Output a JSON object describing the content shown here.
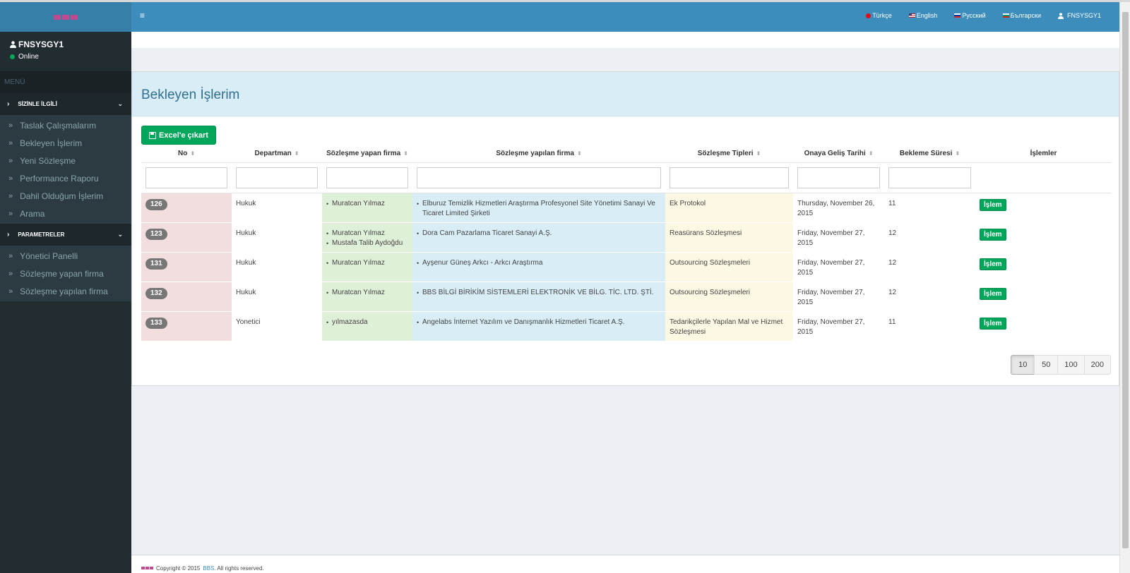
{
  "sidebar": {
    "user_name": "FNSYSGY1",
    "status": "Online",
    "menu_header": "MENÜ",
    "sections": [
      {
        "label": "SİZİNLE İLGİLİ",
        "items": [
          "Taslak Çalışmalarım",
          "Bekleyen İşlerim",
          "Yeni Sözleşme",
          "Performance Raporu",
          "Dahil Olduğum İşlerim",
          "Arama"
        ]
      },
      {
        "label": "PARAMETRELER",
        "items": [
          "Yönetici Panelli",
          "Sözleşme yapan firma",
          "Sözleşme yapılan firma"
        ]
      }
    ]
  },
  "header": {
    "languages": [
      "Türkçe",
      "English",
      "Русский",
      "Български"
    ],
    "user": "FNSYSGY1"
  },
  "page": {
    "title": "Bekleyen İşlerim",
    "excel_label": "Excel'e çıkart"
  },
  "table": {
    "columns": [
      "No",
      "Departman",
      "Sözleşme yapan firma",
      "Sözleşme yapılan firma",
      "Sözleşme Tipleri",
      "Onaya Geliş Tarihi",
      "Bekleme Süresi",
      "İşlemler"
    ],
    "action_label": "İşlem",
    "rows": [
      {
        "no": "126",
        "dept": "Hukuk",
        "yapan": [
          "Muratcan Yılmaz"
        ],
        "yapilan": [
          "Elburuz Temizlik Hizmetleri Araştırma Profesyonel Site Yönetimi Sanayi Ve Ticaret Limited Şirketi"
        ],
        "tip": "Ek Protokol",
        "tarih": "Thursday, November 26, 2015",
        "sure": "11"
      },
      {
        "no": "123",
        "dept": "Hukuk",
        "yapan": [
          "Muratcan Yılmaz",
          "Mustafa Talib Aydoğdu"
        ],
        "yapilan": [
          "Dora Cam Pazarlama Ticaret Sanayi A.Ş."
        ],
        "tip": "Reasürans Sözleşmesi",
        "tarih": "Friday, November 27, 2015",
        "sure": "12"
      },
      {
        "no": "131",
        "dept": "Hukuk",
        "yapan": [
          "Muratcan Yılmaz"
        ],
        "yapilan": [
          "Ayşenur Güneş Arkcı - Arkcı Araştırma"
        ],
        "tip": "Outsourcing Sözleşmeleri",
        "tarih": "Friday, November 27, 2015",
        "sure": "12"
      },
      {
        "no": "132",
        "dept": "Hukuk",
        "yapan": [
          "Muratcan Yılmaz"
        ],
        "yapilan": [
          "BBS BİLGİ BİRİKİM SİSTEMLERİ ELEKTRONİK VE BİLG. TİC. LTD. ŞTİ."
        ],
        "tip": "Outsourcing Sözleşmeleri",
        "tarih": "Friday, November 27, 2015",
        "sure": "12"
      },
      {
        "no": "133",
        "dept": "Yonetici",
        "yapan": [
          "yılmazasda"
        ],
        "yapilan": [
          "Angelabs İnternet Yazılım ve Danışmanlık Hizmetleri Ticaret A.Ş."
        ],
        "tip": "Tedarikçilerle Yapılan Mal ve Hizmet Sözleşmesi",
        "tarih": "Friday, November 27, 2015",
        "sure": "11"
      }
    ]
  },
  "pager": {
    "options": [
      "10",
      "50",
      "100",
      "200"
    ],
    "selected": "10"
  },
  "footer": {
    "prefix": "Copyright © 2015",
    "brand": "BBS",
    "suffix": ". All rights reserved."
  },
  "colors": {
    "header": "#3c8dbc",
    "sidebar": "#222d32",
    "success": "#00a65a"
  }
}
